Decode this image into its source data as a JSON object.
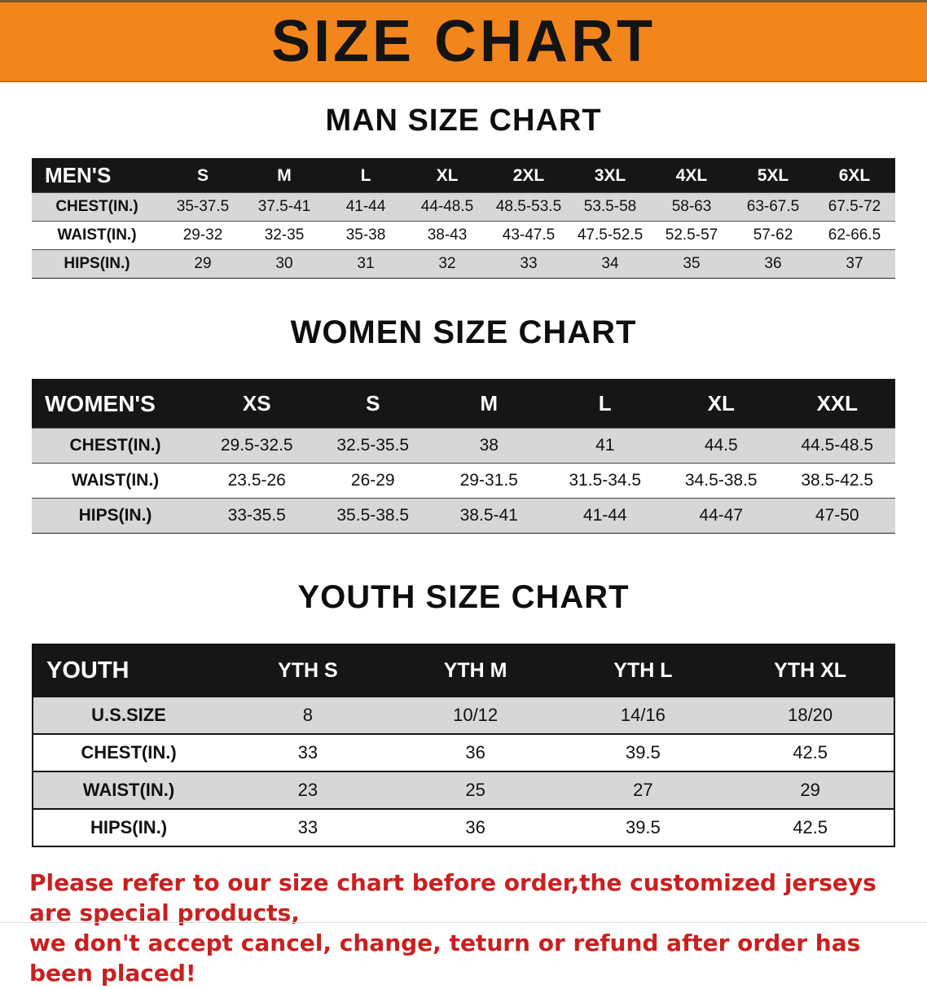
{
  "banner": {
    "title": "SIZE CHART"
  },
  "man": {
    "heading": "MAN SIZE CHART",
    "table": {
      "header": [
        "MEN'S",
        "S",
        "M",
        "L",
        "XL",
        "2XL",
        "3XL",
        "4XL",
        "5XL",
        "6XL"
      ],
      "rows": [
        [
          "CHEST(IN.)",
          "35-37.5",
          "37.5-41",
          "41-44",
          "44-48.5",
          "48.5-53.5",
          "53.5-58",
          "58-63",
          "63-67.5",
          "67.5-72"
        ],
        [
          "WAIST(IN.)",
          "29-32",
          "32-35",
          "35-38",
          "38-43",
          "43-47.5",
          "47.5-52.5",
          "52.5-57",
          "57-62",
          "62-66.5"
        ],
        [
          "HIPS(IN.)",
          "29",
          "30",
          "31",
          "32",
          "33",
          "34",
          "35",
          "36",
          "37"
        ]
      ]
    }
  },
  "women": {
    "heading": "WOMEN SIZE CHART",
    "table": {
      "header": [
        "WOMEN'S",
        "XS",
        "S",
        "M",
        "L",
        "XL",
        "XXL"
      ],
      "rows": [
        [
          "CHEST(IN.)",
          "29.5-32.5",
          "32.5-35.5",
          "38",
          "41",
          "44.5",
          "44.5-48.5"
        ],
        [
          "WAIST(IN.)",
          "23.5-26",
          "26-29",
          "29-31.5",
          "31.5-34.5",
          "34.5-38.5",
          "38.5-42.5"
        ],
        [
          "HIPS(IN.)",
          "33-35.5",
          "35.5-38.5",
          "38.5-41",
          "41-44",
          "44-47",
          "47-50"
        ]
      ]
    }
  },
  "youth": {
    "heading": "YOUTH SIZE CHART",
    "table": {
      "header": [
        "YOUTH",
        "YTH S",
        "YTH M",
        "YTH L",
        "YTH XL"
      ],
      "rows": [
        [
          "U.S.SIZE",
          "8",
          "10/12",
          "14/16",
          "18/20"
        ],
        [
          "CHEST(IN.)",
          "33",
          "36",
          "39.5",
          "42.5"
        ],
        [
          "WAIST(IN.)",
          "23",
          "25",
          "27",
          "29"
        ],
        [
          "HIPS(IN.)",
          "33",
          "36",
          "39.5",
          "42.5"
        ]
      ]
    }
  },
  "disclaimer": {
    "line1": "Please refer to our size chart before order,the customized jerseys are special products,",
    "line2": "we don't accept cancel, change, teturn or refund after order has been placed!"
  },
  "colors": {
    "banner-bg": "#F2861C",
    "header-bg": "#161616",
    "row-gray": "#D7D7D7",
    "disclaimer-red": "#C9201F"
  }
}
